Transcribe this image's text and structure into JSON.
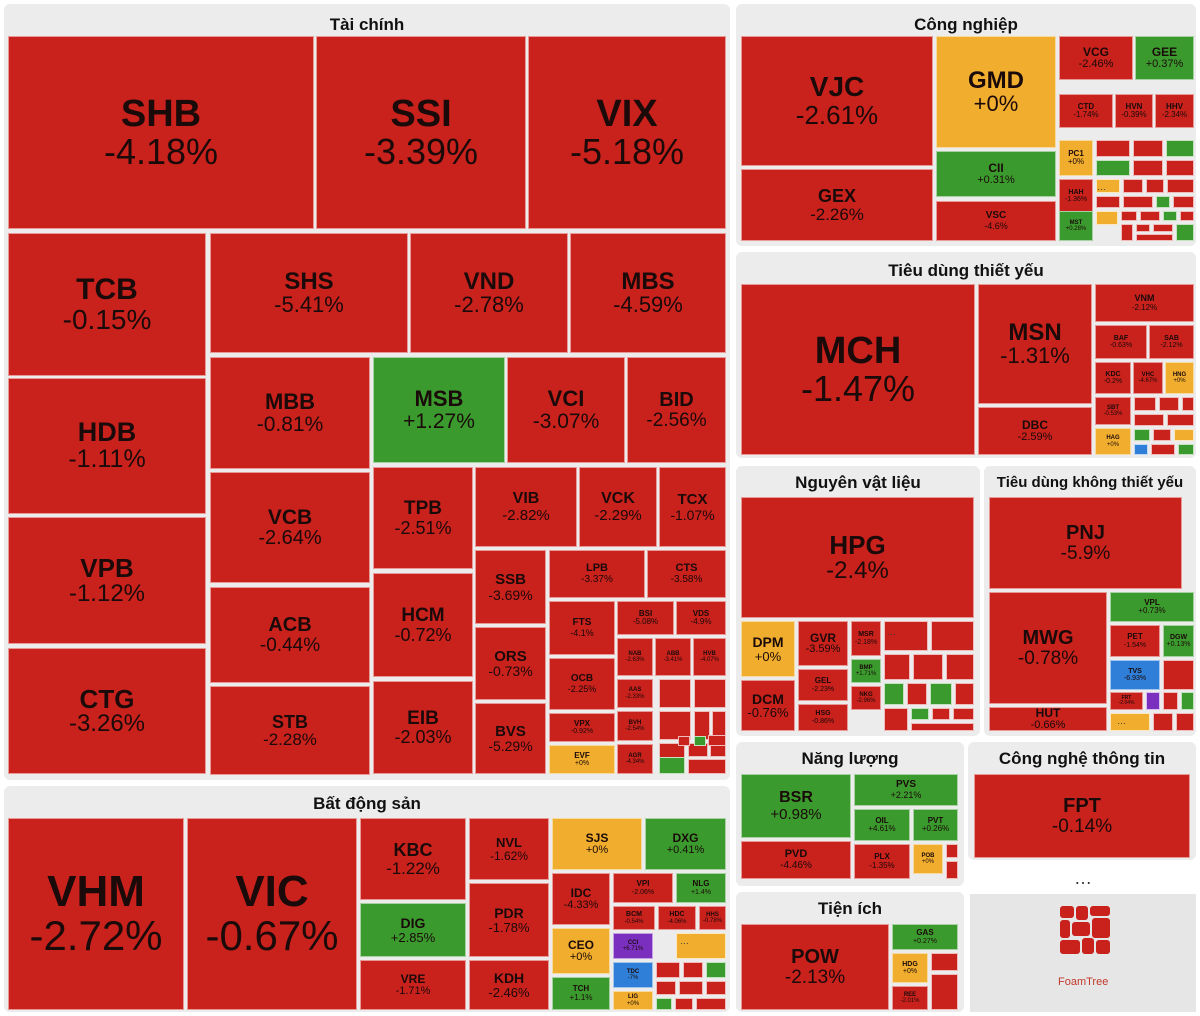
{
  "colors": {
    "down": "#c9211c",
    "up": "#3b9a2d",
    "flat": "#f0ad2e",
    "ceiling": "#7b2fbe",
    "floor": "#2f7fd8",
    "panel": "#ececec"
  },
  "branding": {
    "logo_text": "FoamTree"
  },
  "more_label": "…",
  "chart_data": {
    "type": "treemap",
    "title": "",
    "sectors": [
      {
        "name": "Tài chính",
        "stocks": [
          {
            "ticker": "SHB",
            "change_pct": -4.18
          },
          {
            "ticker": "SSI",
            "change_pct": -3.39
          },
          {
            "ticker": "VIX",
            "change_pct": -5.18
          },
          {
            "ticker": "TCB",
            "change_pct": -0.15
          },
          {
            "ticker": "SHS",
            "change_pct": -5.41
          },
          {
            "ticker": "VND",
            "change_pct": -2.78
          },
          {
            "ticker": "MBS",
            "change_pct": -4.59
          },
          {
            "ticker": "HDB",
            "change_pct": -1.11
          },
          {
            "ticker": "MBB",
            "change_pct": -0.81
          },
          {
            "ticker": "MSB",
            "change_pct": 1.27
          },
          {
            "ticker": "VCI",
            "change_pct": -3.07
          },
          {
            "ticker": "BID",
            "change_pct": -2.56
          },
          {
            "ticker": "VPB",
            "change_pct": -1.12
          },
          {
            "ticker": "VCB",
            "change_pct": -2.64
          },
          {
            "ticker": "TPB",
            "change_pct": -2.51
          },
          {
            "ticker": "VIB",
            "change_pct": -2.82
          },
          {
            "ticker": "VCK",
            "change_pct": -2.29
          },
          {
            "ticker": "TCX",
            "change_pct": -1.07
          },
          {
            "ticker": "CTG",
            "change_pct": -3.26
          },
          {
            "ticker": "ACB",
            "change_pct": -0.44
          },
          {
            "ticker": "HCM",
            "change_pct": -0.72
          },
          {
            "ticker": "SSB",
            "change_pct": -3.69
          },
          {
            "ticker": "LPB",
            "change_pct": -3.37
          },
          {
            "ticker": "CTS",
            "change_pct": -3.58
          },
          {
            "ticker": "STB",
            "change_pct": -2.28
          },
          {
            "ticker": "EIB",
            "change_pct": -2.03
          },
          {
            "ticker": "ORS",
            "change_pct": -0.73
          },
          {
            "ticker": "BVS",
            "change_pct": -5.29
          },
          {
            "ticker": "FTS",
            "change_pct": -4.1
          },
          {
            "ticker": "BSI",
            "change_pct": -5.08
          },
          {
            "ticker": "VDS",
            "change_pct": -4.9
          },
          {
            "ticker": "OCB",
            "change_pct": -2.25
          },
          {
            "ticker": "NAB",
            "change_pct": -2.63
          },
          {
            "ticker": "ABB",
            "change_pct": -3.41
          },
          {
            "ticker": "HVB",
            "change_pct": -4.07
          },
          {
            "ticker": "VPX",
            "change_pct": -0.92
          },
          {
            "ticker": "AAS",
            "change_pct": -2.33
          },
          {
            "ticker": "BVH",
            "change_pct": -2.54
          },
          {
            "ticker": "AGR",
            "change_pct": -4.34
          },
          {
            "ticker": "EVF",
            "change_pct": 0
          }
        ]
      },
      {
        "name": "Công nghiệp",
        "stocks": [
          {
            "ticker": "VJC",
            "change_pct": -2.61
          },
          {
            "ticker": "GMD",
            "change_pct": 0
          },
          {
            "ticker": "VCG",
            "change_pct": -2.46
          },
          {
            "ticker": "GEE",
            "change_pct": 0.37
          },
          {
            "ticker": "CTD",
            "change_pct": -1.74
          },
          {
            "ticker": "HVN",
            "change_pct": -0.39
          },
          {
            "ticker": "HHV",
            "change_pct": -2.34
          },
          {
            "ticker": "GEX",
            "change_pct": -2.26
          },
          {
            "ticker": "CII",
            "change_pct": 0.31
          },
          {
            "ticker": "PC1",
            "change_pct": 0
          },
          {
            "ticker": "VSC",
            "change_pct": -4.6
          },
          {
            "ticker": "HAH",
            "change_pct": -1.36
          },
          {
            "ticker": "MST",
            "change_pct": 0.28
          }
        ]
      },
      {
        "name": "Tiêu dùng thiết yếu",
        "stocks": [
          {
            "ticker": "MCH",
            "change_pct": -1.47
          },
          {
            "ticker": "MSN",
            "change_pct": -1.31
          },
          {
            "ticker": "VNM",
            "change_pct": -2.12
          },
          {
            "ticker": "BAF",
            "change_pct": -0.63
          },
          {
            "ticker": "SAB",
            "change_pct": -2.12
          },
          {
            "ticker": "KDC",
            "change_pct": -0.2
          },
          {
            "ticker": "VHC",
            "change_pct": -4.67
          },
          {
            "ticker": "HNG",
            "change_pct": 0
          },
          {
            "ticker": "DBC",
            "change_pct": -2.59
          },
          {
            "ticker": "HAG",
            "change_pct": 0
          },
          {
            "ticker": "SBT",
            "change_pct": -0.53
          }
        ]
      },
      {
        "name": "Nguyên vật liệu",
        "stocks": [
          {
            "ticker": "HPG",
            "change_pct": -2.4
          },
          {
            "ticker": "DPM",
            "change_pct": 0
          },
          {
            "ticker": "GVR",
            "change_pct": -3.59
          },
          {
            "ticker": "MSR",
            "change_pct": -2.18
          },
          {
            "ticker": "GEL",
            "change_pct": -2.23
          },
          {
            "ticker": "BMP",
            "change_pct": 1.71
          },
          {
            "ticker": "DCM",
            "change_pct": -0.76
          },
          {
            "ticker": "HSG",
            "change_pct": -0.86
          },
          {
            "ticker": "NKG",
            "change_pct": -2.96
          }
        ]
      },
      {
        "name": "Tiêu dùng không thiết yếu",
        "stocks": [
          {
            "ticker": "PNJ",
            "change_pct": -5.9
          },
          {
            "ticker": "MWG",
            "change_pct": -0.78
          },
          {
            "ticker": "VPL",
            "change_pct": 0.73
          },
          {
            "ticker": "PET",
            "change_pct": -1.54
          },
          {
            "ticker": "DGW",
            "change_pct": 0.13
          },
          {
            "ticker": "TVS",
            "change_pct": -6.93
          },
          {
            "ticker": "FRT",
            "change_pct": -2.94
          },
          {
            "ticker": "HUT",
            "change_pct": -0.66
          }
        ]
      },
      {
        "name": "Năng lượng",
        "stocks": [
          {
            "ticker": "BSR",
            "change_pct": 0.98
          },
          {
            "ticker": "PVS",
            "change_pct": 2.21
          },
          {
            "ticker": "OIL",
            "change_pct": 4.61
          },
          {
            "ticker": "PVT",
            "change_pct": 0.26
          },
          {
            "ticker": "PVD",
            "change_pct": -4.46
          },
          {
            "ticker": "PLX",
            "change_pct": -1.35
          },
          {
            "ticker": "POB",
            "change_pct": 0
          }
        ]
      },
      {
        "name": "Công nghệ thông tin",
        "stocks": [
          {
            "ticker": "FPT",
            "change_pct": -0.14
          }
        ]
      },
      {
        "name": "Bất động sản",
        "stocks": [
          {
            "ticker": "VHM",
            "change_pct": -2.72
          },
          {
            "ticker": "VIC",
            "change_pct": -0.67
          },
          {
            "ticker": "KBC",
            "change_pct": -1.22
          },
          {
            "ticker": "NVL",
            "change_pct": -1.62
          },
          {
            "ticker": "SJS",
            "change_pct": 0
          },
          {
            "ticker": "DXG",
            "change_pct": 0.41
          },
          {
            "ticker": "DIG",
            "change_pct": 2.85
          },
          {
            "ticker": "PDR",
            "change_pct": -1.78
          },
          {
            "ticker": "IDC",
            "change_pct": -4.33
          },
          {
            "ticker": "VPI",
            "change_pct": -2.06
          },
          {
            "ticker": "NLG",
            "change_pct": 1.4
          },
          {
            "ticker": "CEO",
            "change_pct": 0
          },
          {
            "ticker": "BCM",
            "change_pct": -0.54
          },
          {
            "ticker": "HDC",
            "change_pct": -4.06
          },
          {
            "ticker": "HHS",
            "change_pct": -0.78
          },
          {
            "ticker": "VRE",
            "change_pct": -1.71
          },
          {
            "ticker": "KDH",
            "change_pct": -2.46
          },
          {
            "ticker": "TCH",
            "change_pct": 1.1
          },
          {
            "ticker": "CCI",
            "change_pct": 6.71
          },
          {
            "ticker": "TDC",
            "change_pct": -7
          },
          {
            "ticker": "LIG",
            "change_pct": 0
          }
        ]
      },
      {
        "name": "Tiện ích",
        "stocks": [
          {
            "ticker": "POW",
            "change_pct": -2.13
          },
          {
            "ticker": "GAS",
            "change_pct": 0.27
          },
          {
            "ticker": "HDG",
            "change_pct": 0
          },
          {
            "ticker": "REE",
            "change_pct": -2.01
          }
        ]
      }
    ]
  }
}
